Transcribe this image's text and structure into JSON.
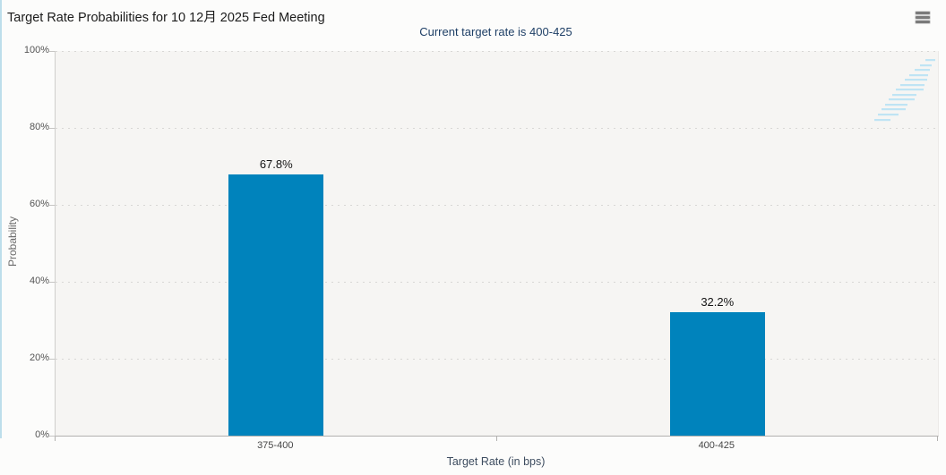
{
  "header": {
    "title": "Target Rate Probabilities for 10 12月 2025 Fed Meeting"
  },
  "chart_data": {
    "type": "bar",
    "title": "Target Rate Probabilities for 10 12月 2025 Fed Meeting",
    "subtitle": "Current target rate is 400-425",
    "categories": [
      "375-400",
      "400-425"
    ],
    "values": [
      67.8,
      32.2
    ],
    "value_labels": [
      "67.8%",
      "32.2%"
    ],
    "xlabel": "Target Rate (in bps)",
    "ylabel": "Probability",
    "ylim": [
      0,
      100
    ],
    "ytick_values": [
      0,
      20,
      40,
      60,
      80,
      100
    ],
    "ytick_labels": [
      "0%",
      "20%",
      "40%",
      "60%",
      "80%",
      "100%"
    ],
    "grid": "horizontal-dotted",
    "legend": "none",
    "bar_color": "#0083bc"
  },
  "watermark": {
    "letter": "Q"
  },
  "icons": {
    "menu": "hamburger-icon"
  },
  "colors": {
    "bar": "#0083bc",
    "subtitle_text": "#1e3f66",
    "axis_title_text": "#3e4d60",
    "plot_background": "#f6f5f3",
    "grid_dot": "#d8d7d5",
    "title_text": "#1b1b1b",
    "watermark_gray": "#b6b6b6",
    "watermark_stripe": "#bfe4f4"
  }
}
